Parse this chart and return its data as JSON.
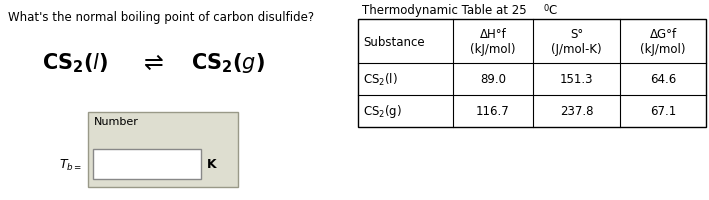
{
  "question": "What's the normal boiling point of carbon disulfide?",
  "table_title_main": "Thermodynamic Table at 25",
  "table_title_sup": "0",
  "table_title_end": "C",
  "col_headers_line1": [
    "Substance",
    "ΔH°f",
    "S°",
    "ΔG°f"
  ],
  "col_headers_line2": [
    "",
    "(kJ/mol)",
    "(J/mol-K)",
    "(kJ/mol)"
  ],
  "row1": [
    "CS₂(l)",
    "89.0",
    "151.3",
    "64.6"
  ],
  "row2": [
    "CS₂(g)",
    "116.7",
    "237.8",
    "67.1"
  ],
  "input_label": "Number",
  "unit_label": "K",
  "box_bg": "#deded0",
  "fig_width": 7.09,
  "fig_height": 2.01,
  "dpi": 100
}
